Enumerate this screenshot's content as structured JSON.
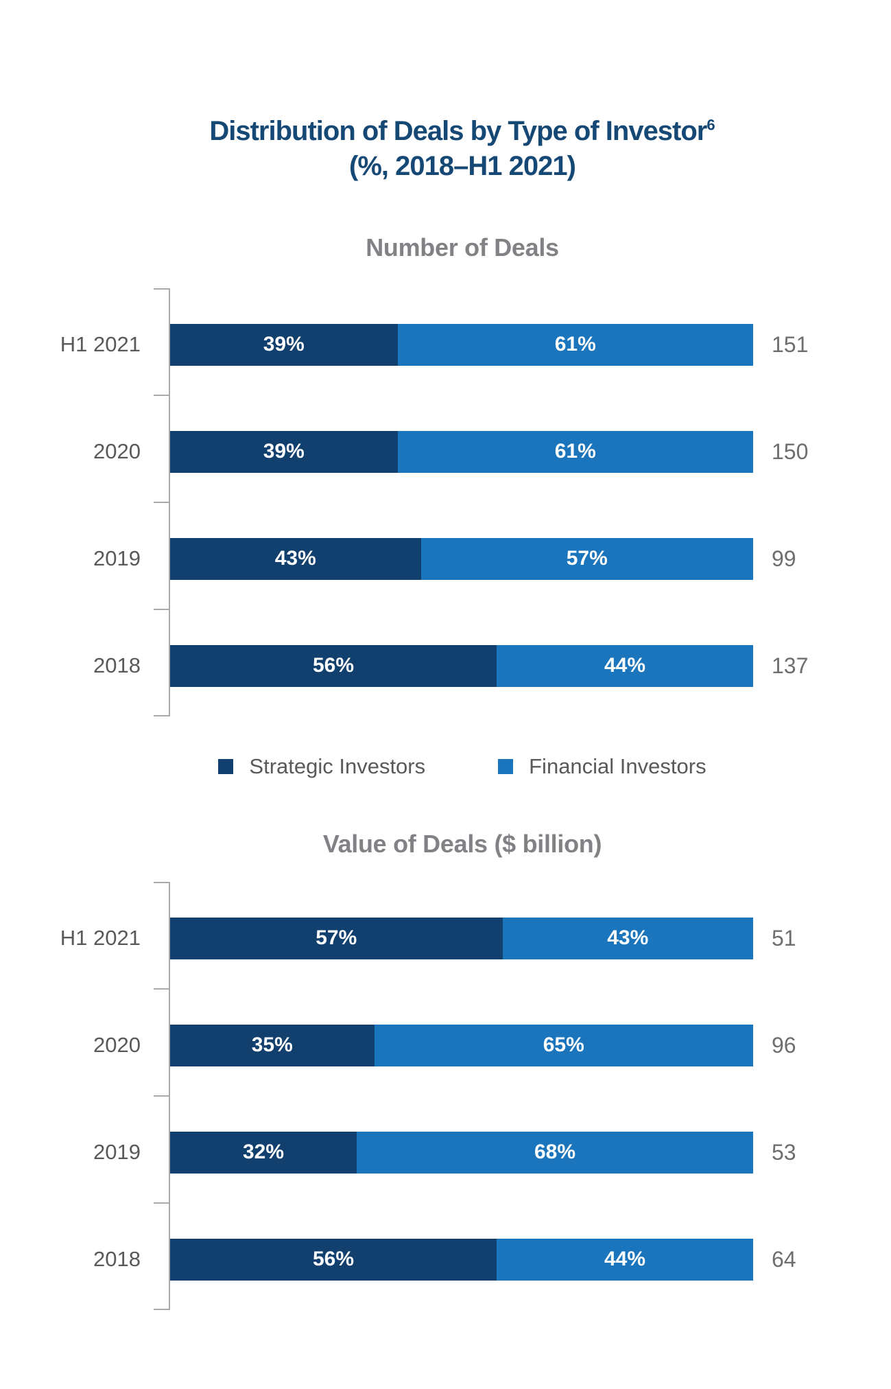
{
  "page": {
    "title_line1": "Distribution of Deals by Type of Investor",
    "title_superscript": "6",
    "title_line2": "(%, 2018–H1 2021)"
  },
  "colors": {
    "strategic": "#12406E",
    "financial": "#1B75BC",
    "title_text": "#154875",
    "subtitle_text": "#808285",
    "category_text": "#58595B",
    "total_text": "#6D6E71",
    "axis": "#A7A9AC",
    "percent_text": "#FFFFFF"
  },
  "legend": {
    "items": [
      {
        "label": "Strategic Investors",
        "color_key": "strategic"
      },
      {
        "label": "Financial Investors",
        "color_key": "financial"
      }
    ]
  },
  "chart_data": [
    {
      "type": "bar",
      "orientation": "horizontal",
      "stacked": true,
      "title": "Number of Deals",
      "unit": "%",
      "xlim": [
        0,
        100
      ],
      "grid": false,
      "categories": [
        "H1 2021",
        "2020",
        "2019",
        "2018"
      ],
      "series": [
        {
          "name": "Strategic Investors",
          "color_key": "strategic",
          "values": [
            39,
            39,
            43,
            56
          ]
        },
        {
          "name": "Financial Investors",
          "color_key": "financial",
          "values": [
            61,
            61,
            57,
            44
          ]
        }
      ],
      "totals": [
        151,
        150,
        99,
        137
      ]
    },
    {
      "type": "bar",
      "orientation": "horizontal",
      "stacked": true,
      "title": "Value of Deals ($ billion)",
      "unit": "%",
      "xlim": [
        0,
        100
      ],
      "grid": false,
      "categories": [
        "H1 2021",
        "2020",
        "2019",
        "2018"
      ],
      "series": [
        {
          "name": "Strategic Investors",
          "color_key": "strategic",
          "values": [
            57,
            35,
            32,
            56
          ]
        },
        {
          "name": "Financial Investors",
          "color_key": "financial",
          "values": [
            43,
            65,
            68,
            44
          ]
        }
      ],
      "totals": [
        51,
        96,
        53,
        64
      ]
    }
  ]
}
